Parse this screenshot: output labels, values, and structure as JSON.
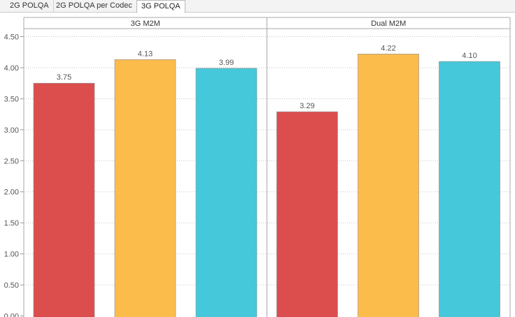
{
  "tabs": [
    {
      "label": "2G POLQA",
      "active": false
    },
    {
      "label": "2G POLQA per Codec",
      "active": false
    },
    {
      "label": "3G POLQA",
      "active": true
    }
  ],
  "chart_data": {
    "type": "bar",
    "title": "",
    "xlabel": "",
    "ylabel": "",
    "ylim": [
      0,
      4.5
    ],
    "ytick_step": 0.5,
    "grid": true,
    "facets": [
      "3G M2M",
      "Dual M2M"
    ],
    "series_colors": [
      "#dc4e4e",
      "#fcbc4c",
      "#45c8d9"
    ],
    "values": [
      [
        3.75,
        4.13,
        3.99
      ],
      [
        3.29,
        4.22,
        4.1
      ]
    ],
    "value_labels": [
      [
        "3.75",
        "4.13",
        "3.99"
      ],
      [
        "3.29",
        "4.22",
        "4.10"
      ]
    ],
    "y_tick_labels": [
      "0.00",
      "0.50",
      "1.00",
      "1.50",
      "2.00",
      "2.50",
      "3.00",
      "3.50",
      "4.00",
      "4.50"
    ]
  }
}
